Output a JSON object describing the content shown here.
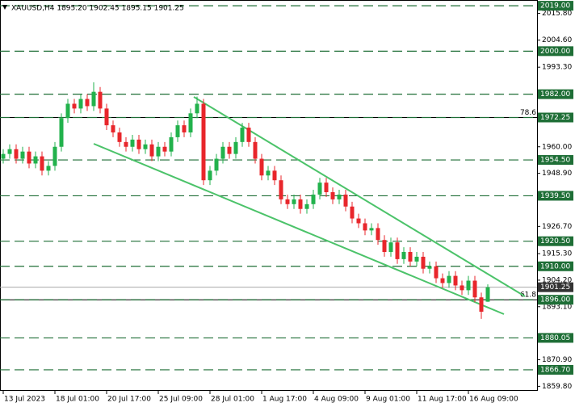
{
  "chart_data": {
    "type": "candlestick",
    "title": "XAUUSD,H4  1895.20 1902.45 1895.15 1901.25",
    "x": [
      "13 Jul 2023",
      null,
      null,
      null,
      null,
      null,
      null,
      null,
      "18 Jul 01:00",
      null,
      null,
      null,
      null,
      null,
      null,
      null,
      "20 Jul 17:00",
      null,
      null,
      null,
      null,
      null,
      null,
      null,
      "25 Jul 09:00",
      null,
      null,
      null,
      null,
      null,
      null,
      null,
      "28 Jul 01:00",
      null,
      null,
      null,
      null,
      null,
      null,
      null,
      "1 Aug 17:00",
      null,
      null,
      null,
      null,
      null,
      null,
      null,
      "4 Aug 09:00",
      null,
      null,
      null,
      null,
      null,
      null,
      null,
      "9 Aug 01:00",
      null,
      null,
      null,
      null,
      null,
      null,
      null,
      "11 Aug 17:00",
      null,
      null,
      null,
      null,
      null,
      null,
      null,
      "16 Aug 09:00",
      null,
      null,
      null
    ],
    "open": [
      1955,
      1957,
      1959,
      1955,
      1958,
      1953,
      1956,
      1950,
      1952,
      1960,
      1972,
      1978,
      1976,
      1980,
      1977,
      1983,
      1976,
      1969,
      1966,
      1962,
      1960,
      1963,
      1959,
      1961,
      1956,
      1960,
      1958,
      1964,
      1969,
      1966,
      1974,
      1978,
      1946,
      1950,
      1955,
      1960,
      1957,
      1962,
      1968,
      1962,
      1955,
      1948,
      1950,
      1946,
      1938,
      1936,
      1938,
      1934,
      1936,
      1940,
      1945,
      1941,
      1938,
      1940,
      1935,
      1930,
      1928,
      1925,
      1926,
      1921,
      1916,
      1920,
      1913,
      1916,
      1912,
      1914,
      1909,
      1910,
      1905,
      1903,
      1906,
      1902,
      1900,
      1904,
      1897,
      1895.2
    ],
    "high": [
      1959,
      1961,
      1961,
      1960,
      1960,
      1958,
      1958,
      1954,
      1962,
      1974,
      1980,
      1980,
      1982,
      1982,
      1987,
      1985,
      1978,
      1971,
      1968,
      1964,
      1965,
      1965,
      1963,
      1963,
      1962,
      1962,
      1966,
      1971,
      1971,
      1976,
      1981,
      1980,
      1952,
      1957,
      1962,
      1962,
      1964,
      1970,
      1970,
      1964,
      1957,
      1952,
      1952,
      1948,
      1940,
      1940,
      1940,
      1938,
      1942,
      1947,
      1947,
      1943,
      1942,
      1942,
      1937,
      1932,
      1930,
      1928,
      1928,
      1923,
      1922,
      1922,
      1918,
      1918,
      1916,
      1916,
      1912,
      1912,
      1907,
      1908,
      1908,
      1904,
      1906,
      1906,
      1899,
      1902.45
    ],
    "low": [
      1953,
      1955,
      1953,
      1953,
      1951,
      1951,
      1948,
      1948,
      1950,
      1958,
      1970,
      1974,
      1974,
      1975,
      1975,
      1974,
      1967,
      1964,
      1960,
      1958,
      1958,
      1957,
      1957,
      1954,
      1954,
      1956,
      1956,
      1962,
      1964,
      1964,
      1972,
      1944,
      1944,
      1948,
      1953,
      1955,
      1955,
      1960,
      1960,
      1953,
      1946,
      1946,
      1944,
      1936,
      1934,
      1934,
      1932,
      1932,
      1934,
      1938,
      1939,
      1936,
      1936,
      1933,
      1928,
      1926,
      1923,
      1923,
      1919,
      1914,
      1914,
      1911,
      1911,
      1910,
      1910,
      1907,
      1907,
      1903,
      1901,
      1901,
      1900,
      1898,
      1898,
      1895,
      1888,
      1895.15
    ],
    "close": [
      1957,
      1959,
      1955,
      1958,
      1953,
      1956,
      1950,
      1952,
      1960,
      1972,
      1978,
      1976,
      1980,
      1977,
      1983,
      1976,
      1969,
      1966,
      1962,
      1960,
      1963,
      1959,
      1961,
      1956,
      1960,
      1958,
      1964,
      1969,
      1966,
      1974,
      1978,
      1946,
      1950,
      1955,
      1960,
      1957,
      1962,
      1968,
      1962,
      1955,
      1948,
      1950,
      1946,
      1938,
      1936,
      1938,
      1934,
      1936,
      1940,
      1945,
      1941,
      1938,
      1940,
      1935,
      1930,
      1928,
      1925,
      1926,
      1921,
      1916,
      1920,
      1913,
      1916,
      1912,
      1914,
      1909,
      1910,
      1905,
      1903,
      1906,
      1902,
      1900,
      1904,
      1897,
      1891,
      1901.25
    ],
    "up_color": "#22b24c",
    "down_color": "#e8262b",
    "ylim": [
      1857.9,
      2021.4
    ],
    "yticks": [
      {
        "value": 2015.8,
        "label": "2015.80"
      },
      {
        "value": 2004.6,
        "label": "2004.60"
      },
      {
        "value": 1993.3,
        "label": "1993.30"
      },
      {
        "value": 1960,
        "label": "1960.00"
      },
      {
        "value": 1948.9,
        "label": "1948.90"
      },
      {
        "value": 1926.7,
        "label": "1926.70"
      },
      {
        "value": 1915.3,
        "label": "1915.30"
      },
      {
        "value": 1904.2,
        "label": "1904.20"
      },
      {
        "value": 1893.1,
        "label": "1893.10"
      },
      {
        "value": 1870.9,
        "label": "1870.90"
      },
      {
        "value": 1859.8,
        "label": "1859.80"
      }
    ],
    "levels": [
      {
        "value": 2019,
        "label": "2019.00"
      },
      {
        "value": 2000,
        "label": "2000.00"
      },
      {
        "value": 1982,
        "label": "1982.00"
      },
      {
        "value": 1972.25,
        "label": "1972.25"
      },
      {
        "value": 1954.5,
        "label": "1954.50"
      },
      {
        "value": 1939.5,
        "label": "1939.50"
      },
      {
        "value": 1920.5,
        "label": "1920.50"
      },
      {
        "value": 1910,
        "label": "1910.00"
      },
      {
        "value": 1896,
        "label": "1896.00"
      },
      {
        "value": 1880.05,
        "label": "1880.05"
      },
      {
        "value": 1866.7,
        "label": "1866.70"
      }
    ],
    "level_color": "#1e6e36",
    "fib_levels": [
      {
        "value": 1972.25,
        "label": "78.6"
      },
      {
        "value": 1896,
        "label": "61.8"
      }
    ],
    "current_price": {
      "value": 1901.25,
      "label": "1901.25"
    }
  }
}
